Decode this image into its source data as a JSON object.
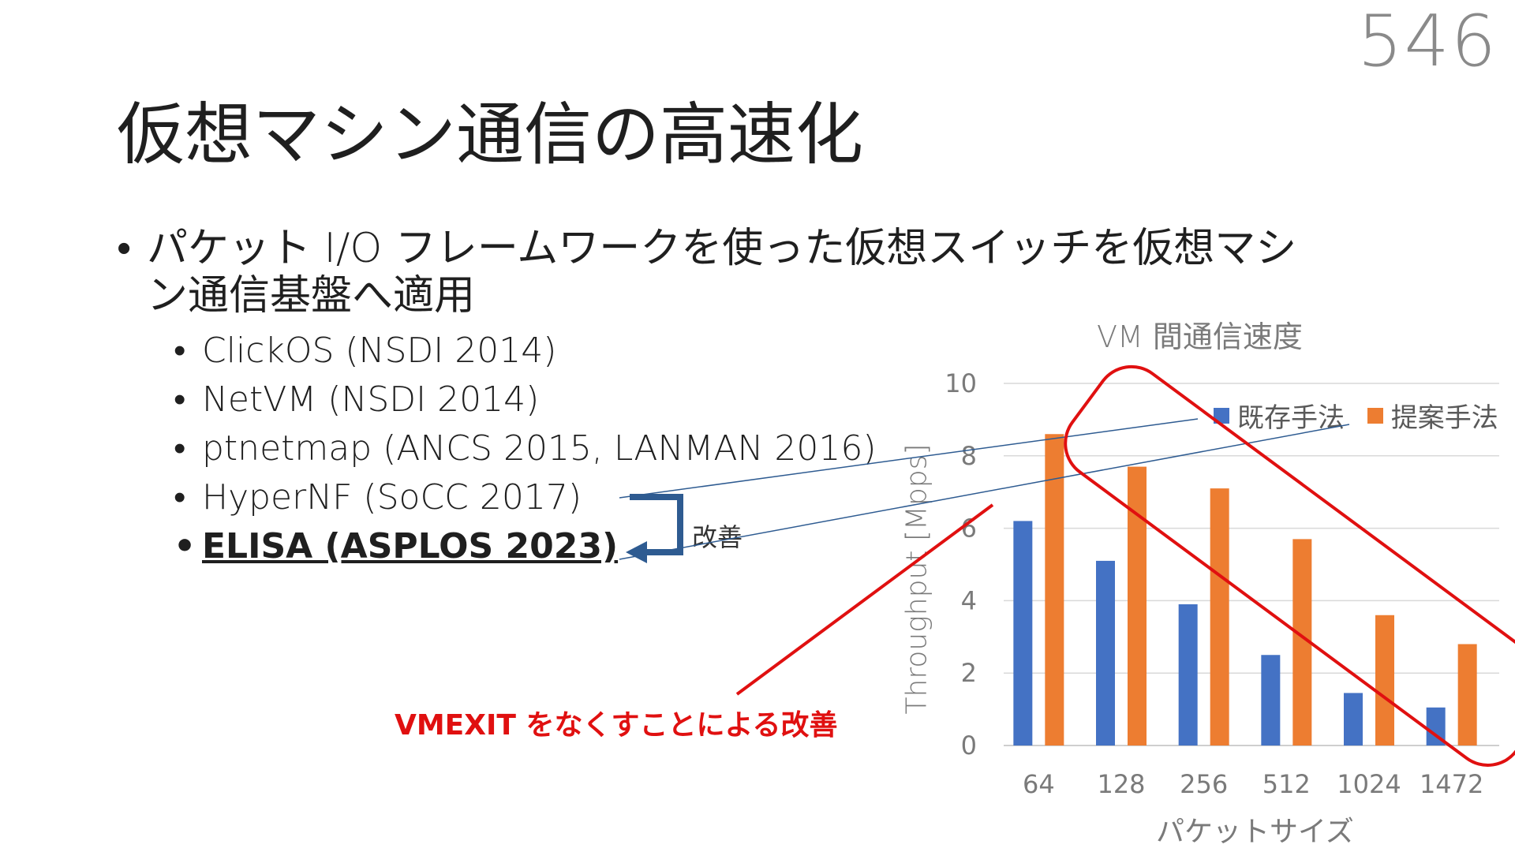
{
  "page_number": "546",
  "title": "仮想マシン通信の高速化",
  "bullet_main_line1": "パケット I/O フレームワークを使った仮想スイッチを仮想マシ",
  "bullet_main_line2": "ン通信基盤へ適用",
  "sub_bullets": [
    "ClickOS (NSDI 2014)",
    "NetVM (NSDI 2014)",
    "ptnetmap (ANCS 2015, LANMAN 2016)",
    "HyperNF (SoCC 2017)",
    "ELISA (ASPLOS 2023)"
  ],
  "improve_label": "改善",
  "vmexit_note": "VMEXIT をなくすことによる改善",
  "colors": {
    "existing": "#4472c4",
    "proposed": "#ed7d31",
    "arrow": "#2e5b91",
    "highlight": "#e01010",
    "grid": "#d9d9d9",
    "axis_text": "#7a7a7a"
  },
  "chart_data": {
    "type": "bar",
    "title": "VM 間通信速度",
    "xlabel": "パケットサイズ",
    "ylabel": "Throughput [Mpps]",
    "categories": [
      "64",
      "128",
      "256",
      "512",
      "1024",
      "1472"
    ],
    "series": [
      {
        "name": "既存手法",
        "values": [
          6.2,
          5.1,
          3.9,
          2.5,
          1.45,
          1.05
        ]
      },
      {
        "name": "提案手法",
        "values": [
          8.6,
          7.7,
          7.1,
          5.7,
          3.6,
          2.8
        ]
      }
    ],
    "ylim": [
      0,
      10
    ],
    "yticks": [
      0,
      2,
      4,
      6,
      8,
      10
    ],
    "grid": true,
    "legend": "top-right"
  }
}
